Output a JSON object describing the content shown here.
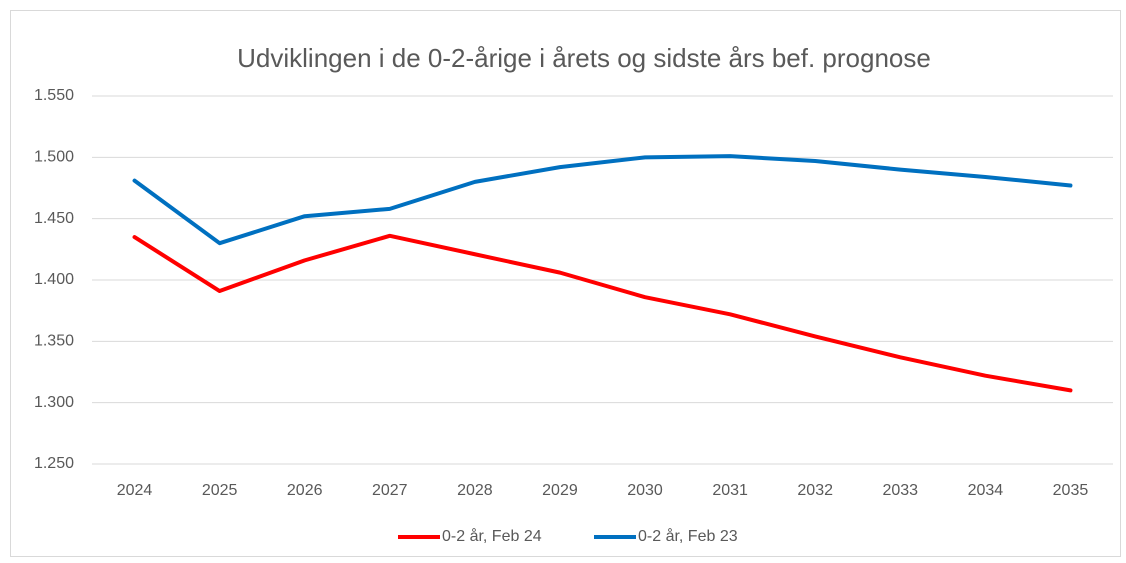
{
  "chart_data": {
    "type": "line",
    "title": "Udviklingen i de 0-2-årige i årets og sidste års bef. prognose",
    "categories": [
      "2024",
      "2025",
      "2026",
      "2027",
      "2028",
      "2029",
      "2030",
      "2031",
      "2032",
      "2033",
      "2034",
      "2035"
    ],
    "series": [
      {
        "name": "0-2 år, Feb 24",
        "color": "#ff0000",
        "values": [
          1435,
          1391,
          1416,
          1436,
          1421,
          1406,
          1386,
          1372,
          1354,
          1337,
          1322,
          1310
        ]
      },
      {
        "name": "0-2 år, Feb 23",
        "color": "#0070c0",
        "values": [
          1481,
          1430,
          1452,
          1458,
          1480,
          1492,
          1500,
          1501,
          1497,
          1490,
          1484,
          1477
        ]
      }
    ],
    "ylim": [
      1250,
      1550
    ],
    "yticks": [
      {
        "value": 1250,
        "label": "1.250"
      },
      {
        "value": 1300,
        "label": "1.300"
      },
      {
        "value": 1350,
        "label": "1.350"
      },
      {
        "value": 1400,
        "label": "1.400"
      },
      {
        "value": 1450,
        "label": "1.450"
      },
      {
        "value": 1500,
        "label": "1.500"
      },
      {
        "value": 1550,
        "label": "1.550"
      }
    ],
    "grid": true,
    "legend": "bottom"
  }
}
